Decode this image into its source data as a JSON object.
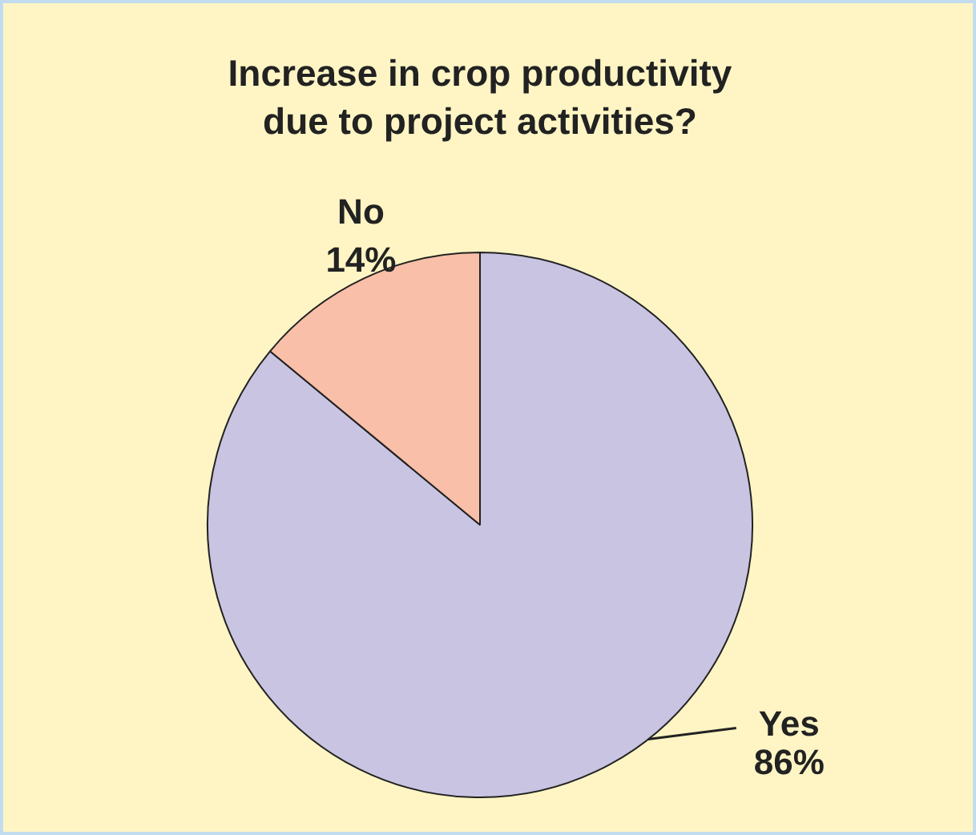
{
  "chart_data": {
    "type": "pie",
    "title": "Increase in crop productivity\ndue to project activities?",
    "categories": [
      "Yes",
      "No"
    ],
    "values": [
      86,
      14
    ],
    "colors": [
      "#c8c4e2",
      "#f9bfa8"
    ],
    "value_labels": [
      "86%",
      "14%"
    ]
  }
}
